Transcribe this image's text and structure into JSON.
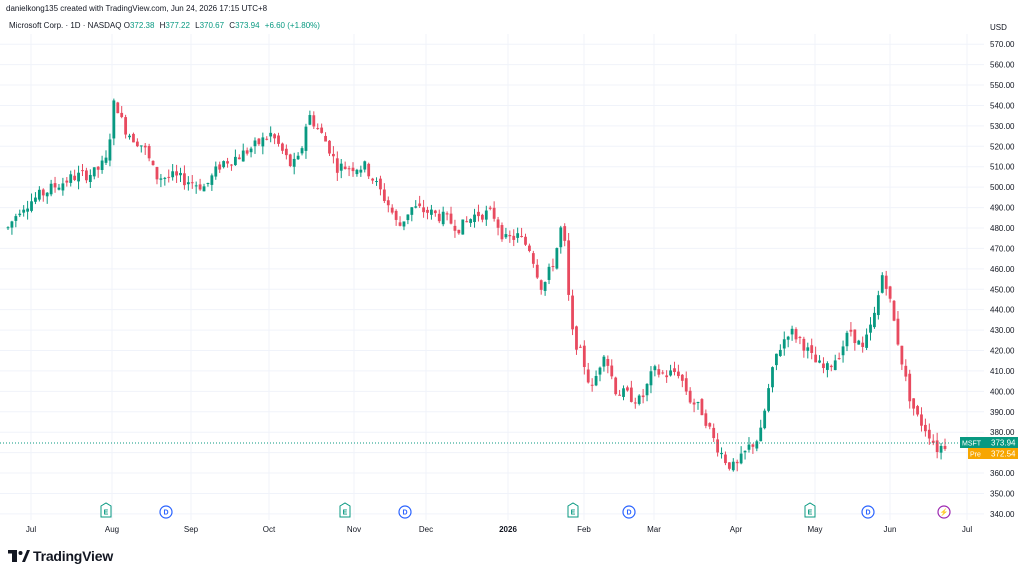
{
  "header": {
    "text": "danielkong135 created with TradingView.com, Jun 24, 2026 17:15 UTC+8"
  },
  "legend": {
    "symbol": "Microsoft Corp. · 1D · NASDAQ",
    "open_label": "O",
    "open": "372.38",
    "high_label": "H",
    "high": "377.22",
    "low_label": "L",
    "low": "370.67",
    "close_label": "C",
    "close": "373.94",
    "change": "+6.60 (+1.80%)"
  },
  "currency": "USD",
  "price_tags": {
    "last": {
      "label": "MSFT",
      "value": "373.94",
      "color": "#089981"
    },
    "pre": {
      "label": "Pre",
      "value": "372.54",
      "color": "#f7a600"
    }
  },
  "footer": {
    "brand": "TradingView"
  },
  "colors": {
    "up": "#089981",
    "down": "#e84a5f",
    "earnings": "#089981",
    "dividend": "#2962ff",
    "split": "#9c27b0"
  },
  "chart_data": {
    "type": "candlestick",
    "symbol": "MSFT",
    "y_axis": {
      "ticks": [
        340,
        350,
        360,
        370,
        380,
        390,
        400,
        410,
        420,
        430,
        440,
        450,
        460,
        470,
        480,
        490,
        500,
        510,
        520,
        530,
        540,
        550,
        560,
        570
      ],
      "unit": "USD",
      "range": [
        337,
        575
      ]
    },
    "x_axis": {
      "labels": [
        "Jul",
        "Aug",
        "Sep",
        "Oct",
        "Nov",
        "Dec",
        "2026",
        "Feb",
        "Mar",
        "Apr",
        "May",
        "Jun",
        "Jul"
      ],
      "bold": [
        "2026"
      ]
    },
    "grid": true,
    "events": [
      {
        "type": "earnings",
        "label": "E",
        "near": "Aug"
      },
      {
        "type": "dividend",
        "label": "D",
        "near": "Aug-Sep"
      },
      {
        "type": "earnings",
        "label": "E",
        "near": "Nov"
      },
      {
        "type": "dividend",
        "label": "D",
        "near": "Nov"
      },
      {
        "type": "earnings",
        "label": "E",
        "near": "Feb"
      },
      {
        "type": "dividend",
        "label": "D",
        "near": "Feb"
      },
      {
        "type": "earnings",
        "label": "E",
        "near": "May"
      },
      {
        "type": "dividend",
        "label": "D",
        "near": "May-Jun"
      },
      {
        "type": "split",
        "label": "⚡",
        "near": "Jun-Jul"
      }
    ],
    "trend_closes": [
      [
        0,
        480
      ],
      [
        6,
        490
      ],
      [
        14,
        495
      ],
      [
        22,
        500
      ],
      [
        32,
        505
      ],
      [
        42,
        507
      ],
      [
        48,
        513
      ],
      [
        52,
        544
      ],
      [
        56,
        530
      ],
      [
        60,
        525
      ],
      [
        66,
        520
      ],
      [
        72,
        505
      ],
      [
        80,
        505
      ],
      [
        88,
        503
      ],
      [
        96,
        500
      ],
      [
        104,
        512
      ],
      [
        112,
        515
      ],
      [
        120,
        520
      ],
      [
        128,
        526
      ],
      [
        132,
        520
      ],
      [
        138,
        510
      ],
      [
        142,
        514
      ],
      [
        146,
        536
      ],
      [
        150,
        530
      ],
      [
        156,
        520
      ],
      [
        160,
        510
      ],
      [
        168,
        510
      ],
      [
        174,
        510
      ],
      [
        180,
        500
      ],
      [
        186,
        490
      ],
      [
        190,
        480
      ],
      [
        196,
        490
      ],
      [
        204,
        488
      ],
      [
        212,
        485
      ],
      [
        220,
        480
      ],
      [
        228,
        487
      ],
      [
        236,
        487
      ],
      [
        242,
        474
      ],
      [
        248,
        476
      ],
      [
        254,
        470
      ],
      [
        260,
        450
      ],
      [
        266,
        465
      ],
      [
        270,
        484
      ],
      [
        274,
        430
      ],
      [
        280,
        415
      ],
      [
        284,
        400
      ],
      [
        290,
        420
      ],
      [
        296,
        400
      ],
      [
        302,
        398
      ],
      [
        308,
        395
      ],
      [
        314,
        410
      ],
      [
        320,
        408
      ],
      [
        326,
        410
      ],
      [
        332,
        396
      ],
      [
        338,
        390
      ],
      [
        344,
        375
      ],
      [
        350,
        365
      ],
      [
        354,
        362
      ],
      [
        360,
        372
      ],
      [
        366,
        378
      ],
      [
        370,
        400
      ],
      [
        374,
        418
      ],
      [
        380,
        430
      ],
      [
        386,
        425
      ],
      [
        392,
        415
      ],
      [
        398,
        410
      ],
      [
        404,
        418
      ],
      [
        410,
        430
      ],
      [
        416,
        420
      ],
      [
        422,
        438
      ],
      [
        426,
        460
      ],
      [
        430,
        440
      ],
      [
        434,
        420
      ],
      [
        438,
        400
      ],
      [
        442,
        388
      ],
      [
        448,
        380
      ],
      [
        452,
        372
      ],
      [
        456,
        374
      ]
    ]
  }
}
